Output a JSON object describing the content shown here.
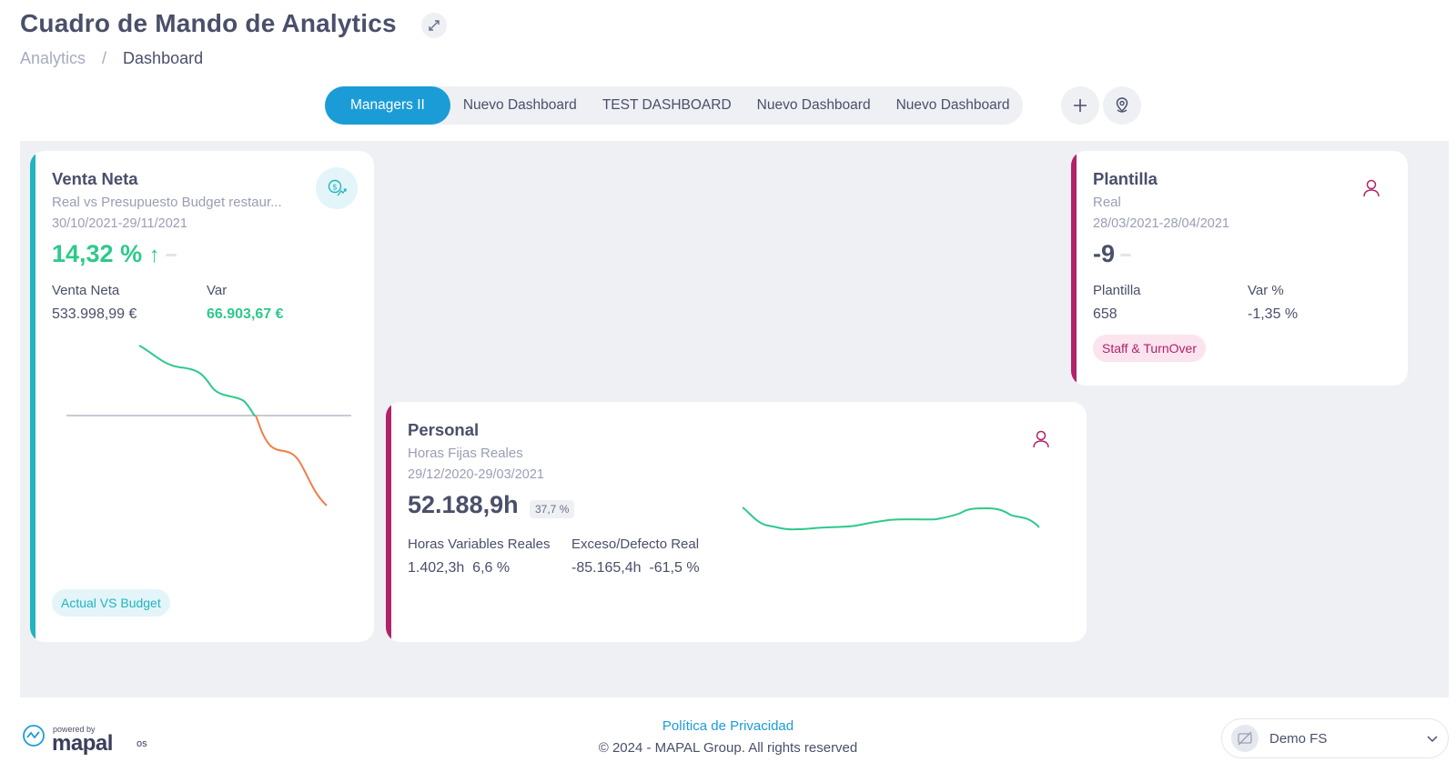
{
  "header": {
    "title": "Cuadro de Mando de Analytics",
    "breadcrumb": [
      "Analytics",
      "/",
      "Dashboard"
    ]
  },
  "tabs": [
    "Managers II",
    "Nuevo Dashboard",
    "TEST DASHBOARD",
    "Nuevo Dashboard",
    "Nuevo Dashboard"
  ],
  "icons": {
    "expand": "expand-icon",
    "add_tab": "plus-icon",
    "location": "location-pin-icon",
    "venta": "money-trend-icon",
    "plantilla": "person-icon",
    "personal": "person-icon",
    "user_select": "chevron-down-icon"
  },
  "colors": {
    "brand_blue": "#1c9cd7",
    "green": "#2ec98b",
    "orange": "#f07f4a",
    "teal_accent": "#22b3c0",
    "magenta_accent": "#b0226a"
  },
  "cards": {
    "venta": {
      "title": "Venta Neta",
      "subtitle": "Real vs Presupuesto Budget restaur...",
      "date": "30/10/2021-29/11/2021",
      "kpi": "14,32 %",
      "kpi_arrow": "↑",
      "label1": "Venta Neta",
      "value1": "533.998,99 €",
      "label2": "Var",
      "value2": "66.903,67 €",
      "chip": "Actual VS Budget"
    },
    "plantilla": {
      "title": "Plantilla",
      "subtitle": "Real",
      "date": "28/03/2021-28/04/2021",
      "kpi": "-9",
      "label1": "Plantilla",
      "value1": "658",
      "label2": "Var %",
      "value2": "-1,35 %",
      "chip": "Staff & TurnOver"
    },
    "personal": {
      "title": "Personal",
      "subtitle": "Horas Fijas Reales",
      "date": "29/12/2020-29/03/2021",
      "kpi": "52.188,9h",
      "kpi_badge": "37,7 %",
      "label1": "Horas Variables Reales",
      "value1a": "1.402,3h",
      "value1b": "6,6 %",
      "label2": "Exceso/Defecto Real",
      "value2a": "-85.165,4h",
      "value2b": "-61,5 %"
    }
  },
  "footer": {
    "privacy": "Política de Privacidad",
    "copyright": "© 2024 - MAPAL Group. All rights reserved",
    "powered_by": "powered by",
    "brand": "mapal",
    "brand_suffix": "os",
    "user": "Demo FS"
  }
}
